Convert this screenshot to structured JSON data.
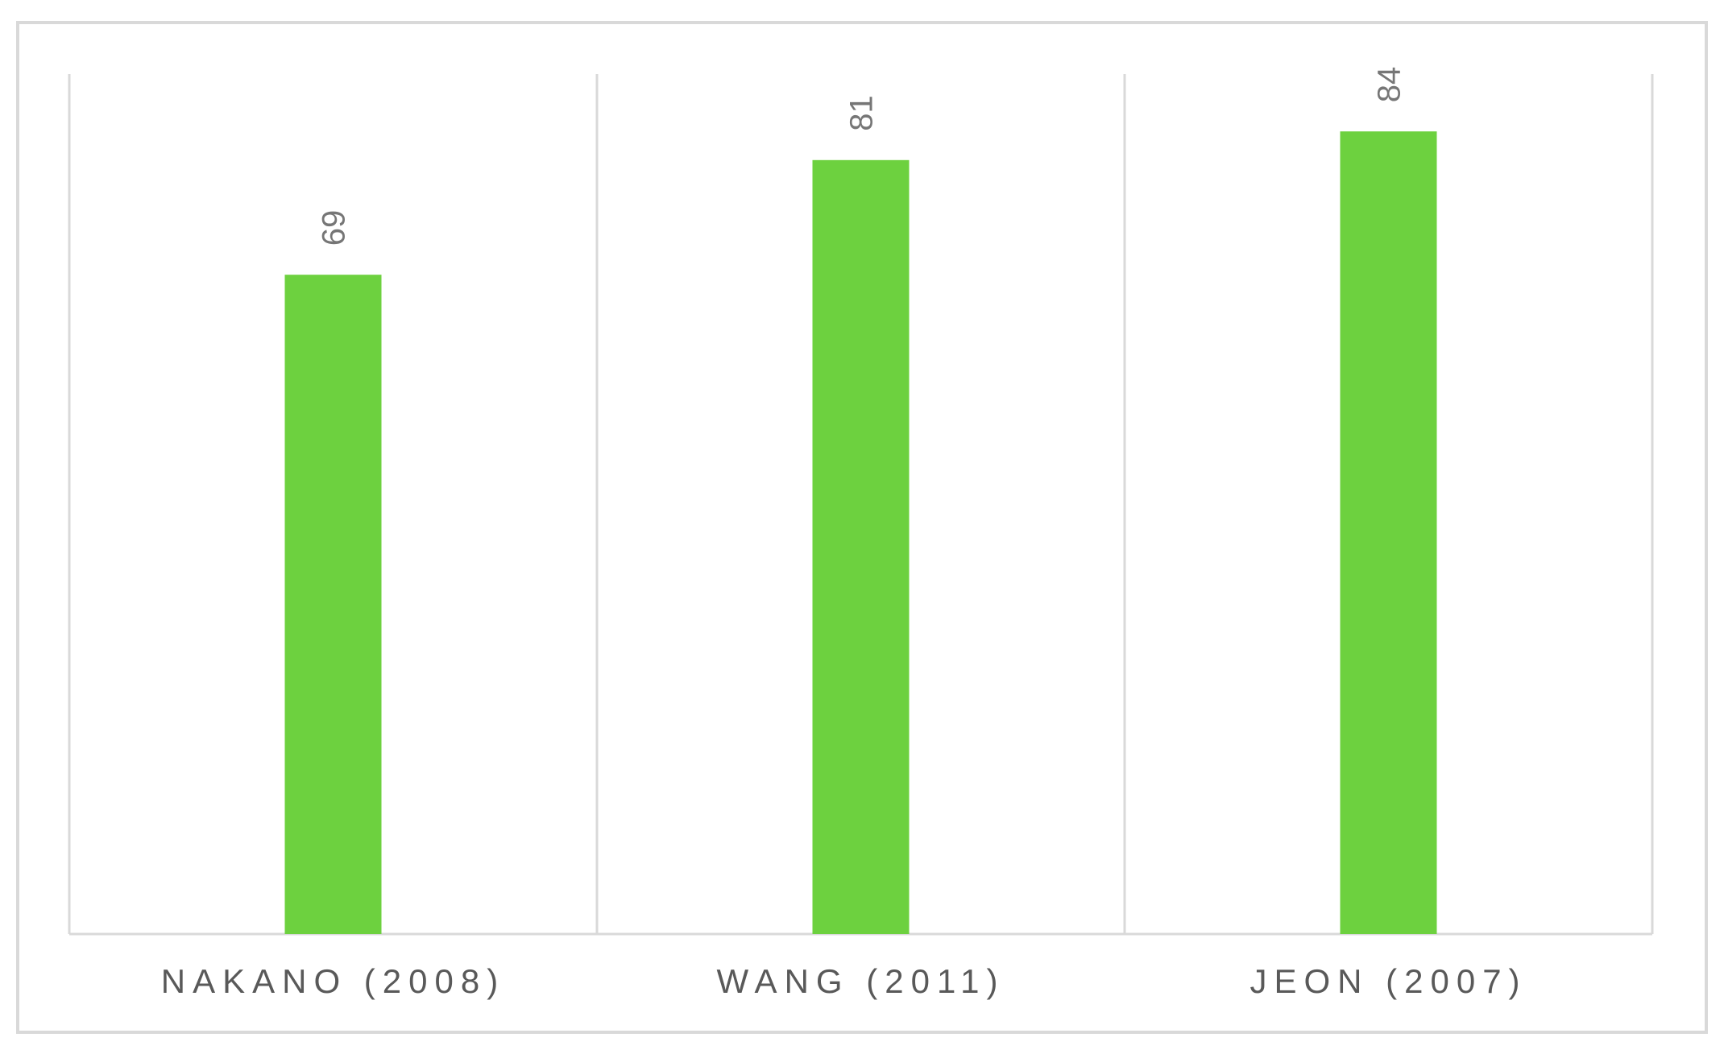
{
  "chart_data": {
    "type": "bar",
    "title": "",
    "xlabel": "",
    "ylabel": "",
    "categories": [
      "NAKANO (2008)",
      "WANG (2011)",
      "JEON (2007)"
    ],
    "values": [
      69,
      81,
      84
    ],
    "data_labels": [
      "69",
      "81",
      "84"
    ],
    "ylim": [
      0,
      90
    ],
    "grid": "vertical category separators",
    "legend": "none",
    "bar_color": "#6dd13f",
    "gridline_color": "#d9d9d9",
    "border_color": "#d9d9d9",
    "label_color": "#595959",
    "data_label_color": "#767676"
  }
}
